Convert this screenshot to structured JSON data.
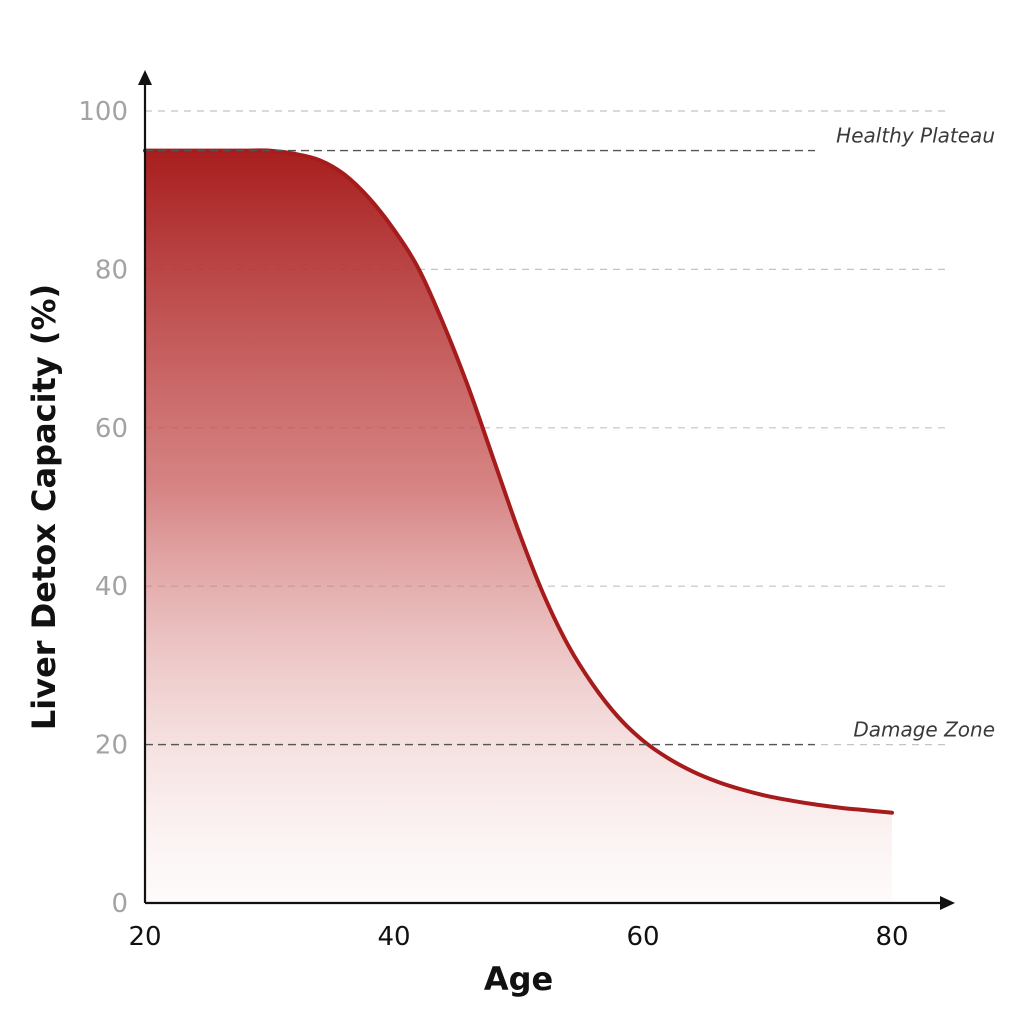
{
  "chart_data": {
    "type": "area",
    "title": "",
    "xlabel": "Age",
    "ylabel": "Liver Detox Capacity (%)",
    "xlim": [
      20,
      80
    ],
    "ylim": [
      0,
      100
    ],
    "x_ticks": [
      "20",
      "40",
      "60",
      "80"
    ],
    "y_ticks": [
      "0",
      "20",
      "40",
      "60",
      "80",
      "100"
    ],
    "grid": true,
    "series": [
      {
        "color": "#a61c1c",
        "x": [
          20,
          22,
          24,
          26,
          28,
          30,
          32,
          34,
          36,
          38,
          40,
          42,
          44,
          46,
          48,
          50,
          52,
          54,
          56,
          58,
          60,
          62,
          64,
          66,
          68,
          70,
          72,
          74,
          76,
          78,
          80
        ],
        "y": [
          95,
          95,
          95,
          95,
          95,
          95,
          94.6,
          93.8,
          92,
          89,
          85,
          80,
          73,
          65,
          56,
          47,
          39,
          32.5,
          27.5,
          23.5,
          20.5,
          18.3,
          16.6,
          15.3,
          14.3,
          13.5,
          12.9,
          12.4,
          12,
          11.7,
          11.4
        ]
      }
    ],
    "reference_lines": [
      {
        "label": "Healthy Plateau",
        "y": 95
      },
      {
        "label": "Damage Zone",
        "y": 20
      }
    ]
  }
}
